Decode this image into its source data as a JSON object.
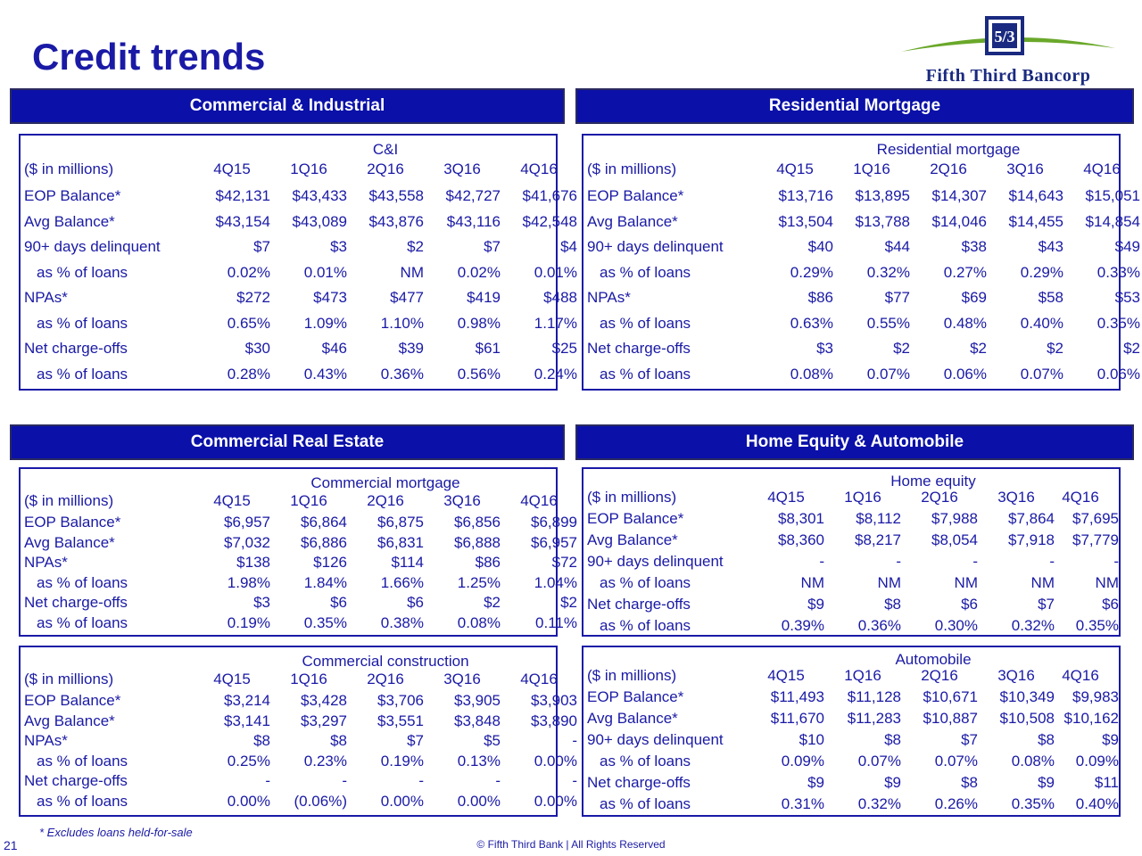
{
  "page": {
    "title": "Credit trends",
    "logo_text": "Fifth Third Bancorp",
    "logo_mark": "5/3",
    "footnote": "* Excludes loans held-for-sale",
    "page_number": "21",
    "copyright": "© Fifth Third Bank | All Rights Reserved",
    "colors": {
      "header_fill": "#0a10a8",
      "text": "#1a1aa6",
      "logo_arc": "#6aa82a"
    }
  },
  "sections": {
    "ci": "Commercial & Industrial",
    "rm": "Residential Mortgage",
    "cre": "Commercial Real Estate",
    "hea": "Home Equity & Automobile"
  },
  "tables": {
    "ci": {
      "caption": "C&I",
      "unit_label": "($ in millions)",
      "periods": [
        "4Q15",
        "1Q16",
        "2Q16",
        "3Q16",
        "4Q16"
      ],
      "rows": [
        {
          "label": "EOP Balance*",
          "values": [
            "$42,131",
            "$43,433",
            "$43,558",
            "$42,727",
            "$41,676"
          ]
        },
        {
          "label": "Avg Balance*",
          "values": [
            "$43,154",
            "$43,089",
            "$43,876",
            "$43,116",
            "$42,548"
          ]
        },
        {
          "label": "90+ days delinquent",
          "values": [
            "$7",
            "$3",
            "$2",
            "$7",
            "$4"
          ]
        },
        {
          "label": "as % of loans",
          "values": [
            "0.02%",
            "0.01%",
            "NM",
            "0.02%",
            "0.01%"
          ]
        },
        {
          "label": "NPAs*",
          "values": [
            "$272",
            "$473",
            "$477",
            "$419",
            "$488"
          ]
        },
        {
          "label": "as % of loans",
          "values": [
            "0.65%",
            "1.09%",
            "1.10%",
            "0.98%",
            "1.17%"
          ]
        },
        {
          "label": "Net charge-offs",
          "values": [
            "$30",
            "$46",
            "$39",
            "$61",
            "$25"
          ]
        },
        {
          "label": "as % of loans",
          "values": [
            "0.28%",
            "0.43%",
            "0.36%",
            "0.56%",
            "0.24%"
          ]
        }
      ]
    },
    "rm": {
      "caption": "Residential mortgage",
      "unit_label": "($ in millions)",
      "periods": [
        "4Q15",
        "1Q16",
        "2Q16",
        "3Q16",
        "4Q16"
      ],
      "rows": [
        {
          "label": "EOP Balance*",
          "values": [
            "$13,716",
            "$13,895",
            "$14,307",
            "$14,643",
            "$15,051"
          ]
        },
        {
          "label": "Avg Balance*",
          "values": [
            "$13,504",
            "$13,788",
            "$14,046",
            "$14,455",
            "$14,854"
          ]
        },
        {
          "label": "90+ days delinquent",
          "values": [
            "$40",
            "$44",
            "$38",
            "$43",
            "$49"
          ]
        },
        {
          "label": "as % of loans",
          "values": [
            "0.29%",
            "0.32%",
            "0.27%",
            "0.29%",
            "0.33%"
          ]
        },
        {
          "label": "NPAs*",
          "values": [
            "$86",
            "$77",
            "$69",
            "$58",
            "$53"
          ]
        },
        {
          "label": "as % of loans",
          "values": [
            "0.63%",
            "0.55%",
            "0.48%",
            "0.40%",
            "0.35%"
          ]
        },
        {
          "label": "Net charge-offs",
          "values": [
            "$3",
            "$2",
            "$2",
            "$2",
            "$2"
          ]
        },
        {
          "label": "as % of loans",
          "values": [
            "0.08%",
            "0.07%",
            "0.06%",
            "0.07%",
            "0.06%"
          ]
        }
      ]
    },
    "cm": {
      "caption": "Commercial mortgage",
      "unit_label": "($ in millions)",
      "periods": [
        "4Q15",
        "1Q16",
        "2Q16",
        "3Q16",
        "4Q16"
      ],
      "rows": [
        {
          "label": "EOP Balance*",
          "values": [
            "$6,957",
            "$6,864",
            "$6,875",
            "$6,856",
            "$6,899"
          ]
        },
        {
          "label": "Avg Balance*",
          "values": [
            "$7,032",
            "$6,886",
            "$6,831",
            "$6,888",
            "$6,957"
          ]
        },
        {
          "label": "NPAs*",
          "values": [
            "$138",
            "$126",
            "$114",
            "$86",
            "$72"
          ]
        },
        {
          "label": "as % of loans",
          "values": [
            "1.98%",
            "1.84%",
            "1.66%",
            "1.25%",
            "1.04%"
          ]
        },
        {
          "label": "Net charge-offs",
          "values": [
            "$3",
            "$6",
            "$6",
            "$2",
            "$2"
          ]
        },
        {
          "label": "as % of loans",
          "values": [
            "0.19%",
            "0.35%",
            "0.38%",
            "0.08%",
            "0.11%"
          ]
        }
      ]
    },
    "cc": {
      "caption": "Commercial construction",
      "unit_label": "($ in millions)",
      "periods": [
        "4Q15",
        "1Q16",
        "2Q16",
        "3Q16",
        "4Q16"
      ],
      "rows": [
        {
          "label": "EOP Balance*",
          "values": [
            "$3,214",
            "$3,428",
            "$3,706",
            "$3,905",
            "$3,903"
          ]
        },
        {
          "label": "Avg Balance*",
          "values": [
            "$3,141",
            "$3,297",
            "$3,551",
            "$3,848",
            "$3,890"
          ]
        },
        {
          "label": "NPAs*",
          "values": [
            "$8",
            "$8",
            "$7",
            "$5",
            "-"
          ]
        },
        {
          "label": "as % of loans",
          "values": [
            "0.25%",
            "0.23%",
            "0.19%",
            "0.13%",
            "0.00%"
          ]
        },
        {
          "label": "Net charge-offs",
          "values": [
            "-",
            "-",
            "-",
            "-",
            "-"
          ]
        },
        {
          "label": "as % of loans",
          "values": [
            "0.00%",
            "(0.06%)",
            "0.00%",
            "0.00%",
            "0.00%"
          ]
        }
      ]
    },
    "he": {
      "caption": "Home equity",
      "unit_label": "($ in millions)",
      "periods": [
        "4Q15",
        "1Q16",
        "2Q16",
        "3Q16",
        "4Q16"
      ],
      "rows": [
        {
          "label": "EOP Balance*",
          "values": [
            "$8,301",
            "$8,112",
            "$7,988",
            "$7,864",
            "$7,695"
          ]
        },
        {
          "label": "Avg Balance*",
          "values": [
            "$8,360",
            "$8,217",
            "$8,054",
            "$7,918",
            "$7,779"
          ]
        },
        {
          "label": "90+ days delinquent",
          "values": [
            "-",
            "-",
            "-",
            "-",
            "-"
          ]
        },
        {
          "label": "as % of loans",
          "values": [
            "NM",
            "NM",
            "NM",
            "NM",
            "NM"
          ]
        },
        {
          "label": "Net charge-offs",
          "values": [
            "$9",
            "$8",
            "$6",
            "$7",
            "$6"
          ]
        },
        {
          "label": "as % of loans",
          "values": [
            "0.39%",
            "0.36%",
            "0.30%",
            "0.32%",
            "0.35%"
          ]
        }
      ]
    },
    "auto": {
      "caption": "Automobile",
      "unit_label": "($ in millions)",
      "periods": [
        "4Q15",
        "1Q16",
        "2Q16",
        "3Q16",
        "4Q16"
      ],
      "rows": [
        {
          "label": "EOP Balance*",
          "values": [
            "$11,493",
            "$11,128",
            "$10,671",
            "$10,349",
            "$9,983"
          ]
        },
        {
          "label": "Avg Balance*",
          "values": [
            "$11,670",
            "$11,283",
            "$10,887",
            "$10,508",
            "$10,162"
          ]
        },
        {
          "label": "90+ days delinquent",
          "values": [
            "$10",
            "$8",
            "$7",
            "$8",
            "$9"
          ]
        },
        {
          "label": "as % of loans",
          "values": [
            "0.09%",
            "0.07%",
            "0.07%",
            "0.08%",
            "0.09%"
          ]
        },
        {
          "label": "Net charge-offs",
          "values": [
            "$9",
            "$9",
            "$8",
            "$9",
            "$11"
          ]
        },
        {
          "label": "as % of loans",
          "values": [
            "0.31%",
            "0.32%",
            "0.26%",
            "0.35%",
            "0.40%"
          ]
        }
      ]
    }
  }
}
